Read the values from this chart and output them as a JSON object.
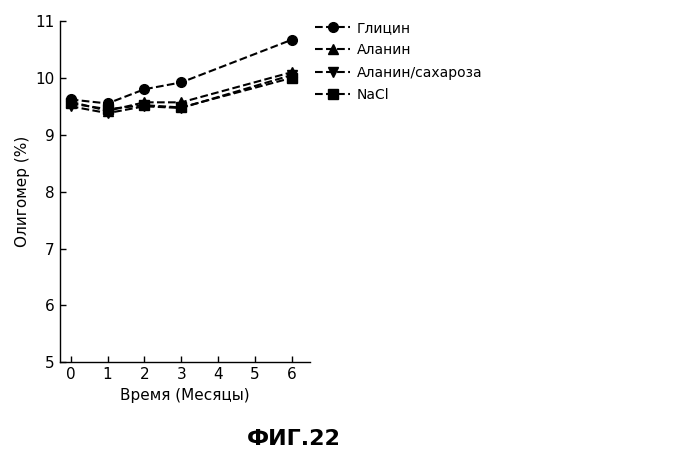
{
  "x": [
    0,
    1,
    2,
    3,
    6
  ],
  "series": {
    "Глицин": [
      9.62,
      9.55,
      9.8,
      9.92,
      10.67
    ],
    "Аланин": [
      9.58,
      9.42,
      9.57,
      9.57,
      10.1
    ],
    "Аланин/сахароза": [
      9.5,
      9.38,
      9.5,
      9.47,
      10.05
    ],
    "NaCl": [
      9.55,
      9.45,
      9.52,
      9.48,
      10.0
    ]
  },
  "markers": [
    "o",
    "^",
    "v",
    "s"
  ],
  "colors": [
    "#000000",
    "#000000",
    "#000000",
    "#000000"
  ],
  "linestyle": "--",
  "ylabel": "Олигомер (%)",
  "xlabel": "Время (Месяцы)",
  "title": "ФИГ.22",
  "ylim": [
    5,
    11
  ],
  "xlim": [
    -0.3,
    6.5
  ],
  "yticks": [
    5,
    6,
    7,
    8,
    9,
    10,
    11
  ],
  "xticks": [
    0,
    1,
    2,
    3,
    4,
    5,
    6
  ],
  "markersize": 7,
  "linewidth": 1.5,
  "tick_fontsize": 11,
  "label_fontsize": 11,
  "legend_fontsize": 10,
  "title_fontsize": 16
}
